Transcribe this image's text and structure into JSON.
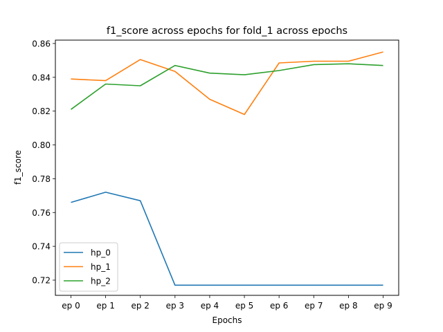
{
  "chart_data": {
    "type": "line",
    "title": "f1_score across epochs for fold_1 across epochs",
    "xlabel": "Epochs",
    "ylabel": "f1_score",
    "categories": [
      "ep 0",
      "ep 1",
      "ep 2",
      "ep 3",
      "ep 4",
      "ep 5",
      "ep 6",
      "ep 7",
      "ep 8",
      "ep 9"
    ],
    "ylim": [
      0.711,
      0.862
    ],
    "yticks": [
      "0.72",
      "0.74",
      "0.76",
      "0.78",
      "0.80",
      "0.82",
      "0.84",
      "0.86"
    ],
    "legend_position": "lower-left",
    "grid": false,
    "series": [
      {
        "name": "hp_0",
        "color": "#1f77b4",
        "values": [
          0.766,
          0.772,
          0.767,
          0.717,
          0.717,
          0.717,
          0.717,
          0.717,
          0.717,
          0.717
        ]
      },
      {
        "name": "hp_1",
        "color": "#ff7f0e",
        "values": [
          0.839,
          0.838,
          0.8505,
          0.8435,
          0.827,
          0.818,
          0.8485,
          0.8495,
          0.8495,
          0.855
        ]
      },
      {
        "name": "hp_2",
        "color": "#2ca02c",
        "values": [
          0.821,
          0.836,
          0.835,
          0.847,
          0.8425,
          0.8415,
          0.844,
          0.8475,
          0.848,
          0.847
        ]
      }
    ]
  }
}
